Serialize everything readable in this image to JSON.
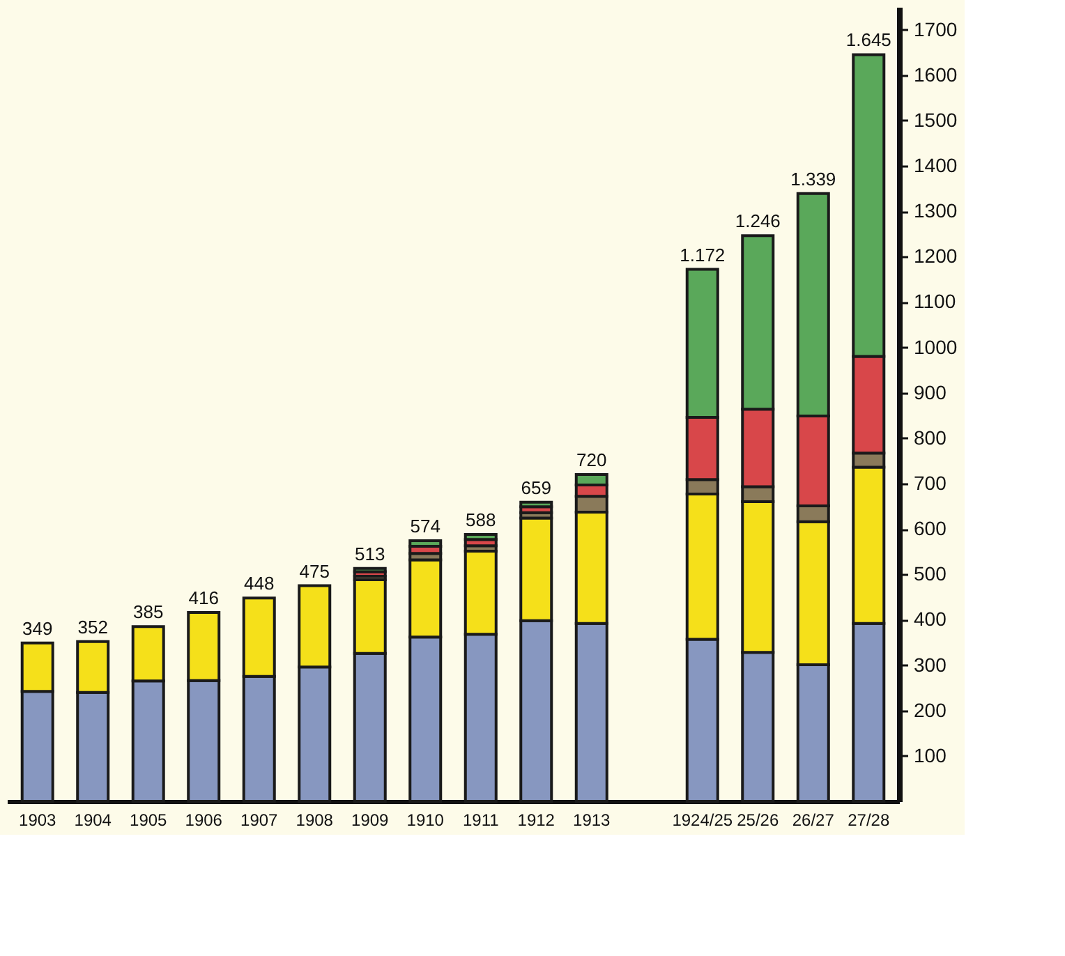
{
  "chart_data": {
    "type": "bar",
    "stacked": true,
    "categories": [
      "1903",
      "1904",
      "1905",
      "1906",
      "1907",
      "1908",
      "1909",
      "1910",
      "1911",
      "1912",
      "1913",
      null,
      "1924/25",
      "25/26",
      "26/27",
      "27/28"
    ],
    "series": [
      {
        "color": "#8797c0",
        "values": [
          242,
          240,
          265,
          266,
          275,
          296,
          326,
          362,
          368,
          398,
          392,
          null,
          357,
          328,
          301,
          392
        ]
      },
      {
        "color": "#f5e01a",
        "values": [
          107,
          112,
          120,
          150,
          173,
          179,
          162,
          170,
          183,
          226,
          245,
          null,
          320,
          332,
          315,
          344
        ]
      },
      {
        "color": "#8a7a5a",
        "values": [
          null,
          null,
          null,
          null,
          null,
          null,
          8,
          14,
          12,
          12,
          35,
          null,
          32,
          33,
          35,
          31
        ]
      },
      {
        "color": "#d8474a",
        "values": [
          null,
          null,
          null,
          null,
          null,
          null,
          10,
          16,
          14,
          13,
          25,
          null,
          137,
          171,
          198,
          213
        ]
      },
      {
        "color": "#5aa85a",
        "values": [
          null,
          null,
          null,
          null,
          null,
          null,
          7,
          12,
          11,
          10,
          23,
          null,
          326,
          382,
          490,
          665
        ]
      }
    ],
    "totals": [
      "349",
      "352",
      "385",
      "416",
      "448",
      "475",
      "513",
      "574",
      "588",
      "659",
      "720",
      null,
      "1.172",
      "1.246",
      "1.339",
      "1.645"
    ],
    "ylim": [
      0,
      1750
    ],
    "yticks": [
      100,
      200,
      300,
      400,
      500,
      600,
      700,
      800,
      900,
      1000,
      1100,
      1200,
      1300,
      1400,
      1500,
      1600,
      1700
    ],
    "grid": false
  }
}
